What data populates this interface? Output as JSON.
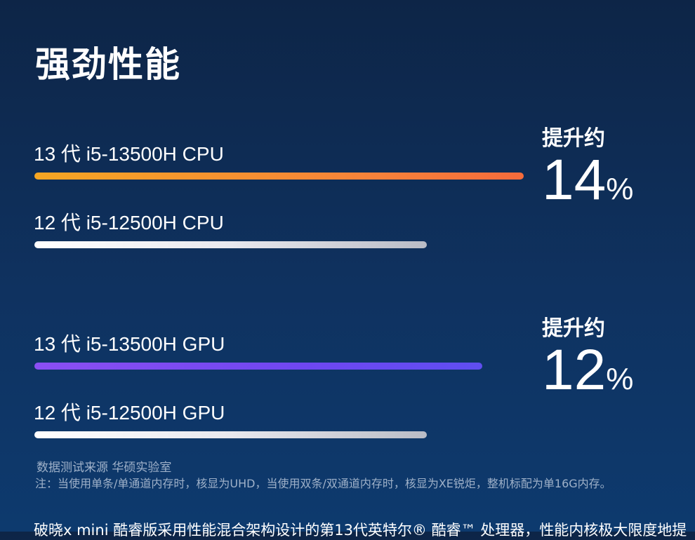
{
  "heading": "强劲性能",
  "comparisons": [
    {
      "new_label": "13 代 i5-13500H CPU",
      "old_label": "12 代 i5-12500H CPU",
      "boost_caption": "提升约",
      "boost_value": "14",
      "boost_unit": "%",
      "new_bar_color": "#f7823a",
      "old_bar_color": "#e8e8ee",
      "new_fill": 1.0,
      "old_fill": 0.8
    },
    {
      "new_label": "13 代 i5-13500H GPU",
      "old_label": "12 代 i5-12500H GPU",
      "boost_caption": "提升约",
      "boost_value": "12",
      "boost_unit": "%",
      "new_bar_color": "#6f47f0",
      "old_bar_color": "#e8e8ee",
      "new_fill": 0.92,
      "old_fill": 0.8
    }
  ],
  "source_text": "数据测试来源 华硕实验室",
  "note_text": "注：当使用单条/单通道内存时，核显为UHD，当使用双条/双通道内存时，核显为XE锐炬，整机标配为单16G内存。",
  "body_text": "破晓x mini 酷睿版采用性能混合架构设计的第13代英特尔® 酷睿™ 处理器，性能内核极大限度地提"
}
